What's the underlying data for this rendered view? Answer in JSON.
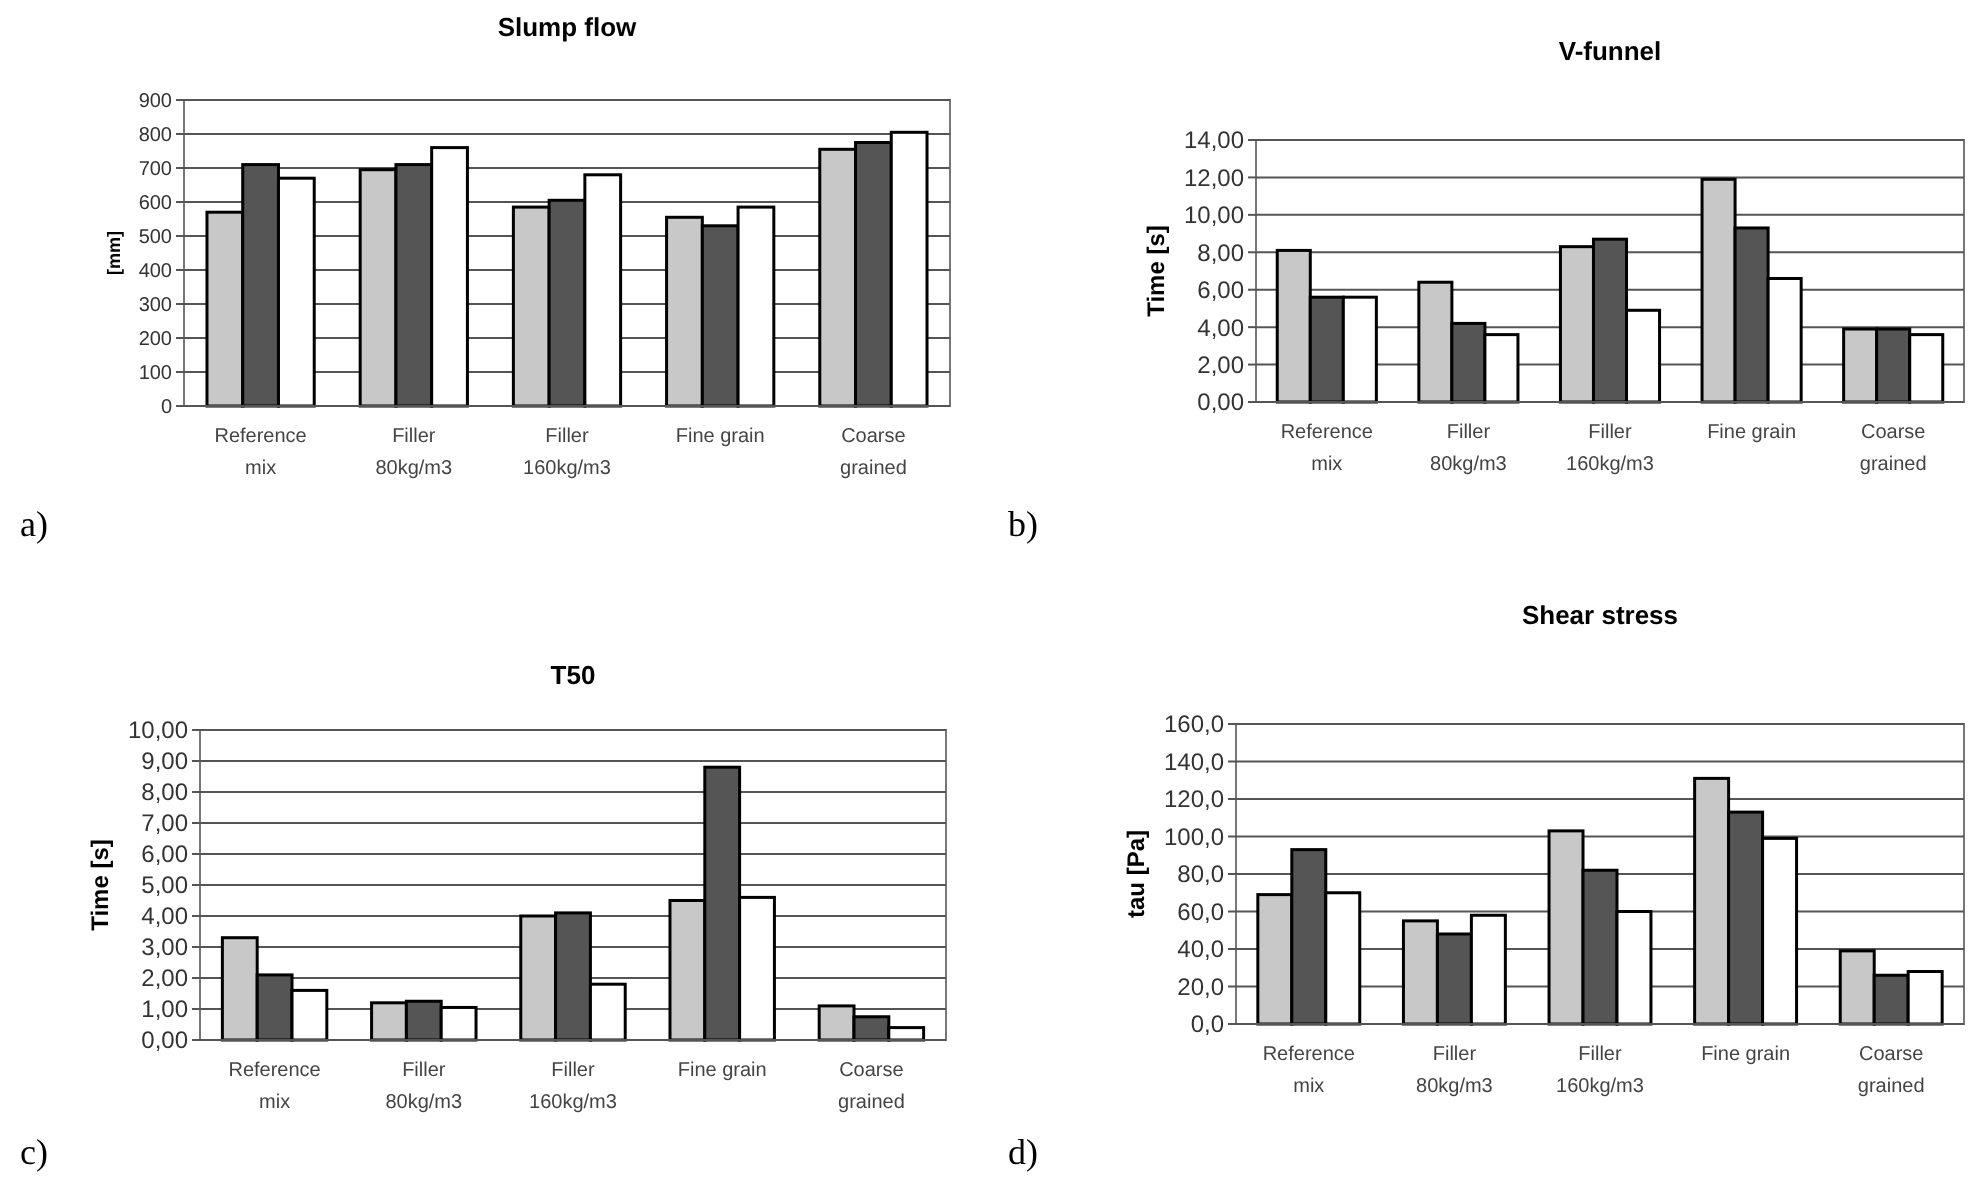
{
  "chart_data": [
    {
      "type": "bar",
      "title": "Slump flow",
      "ylabel": "[mm]",
      "annotations": [
        "a)"
      ],
      "categories": [
        "Reference mix",
        "Filler 80kg/m3",
        "Filler 160kg/m3",
        "Fine grain",
        "Coarse grained"
      ],
      "series": [
        {
          "color": "#c8c8c8",
          "values": [
            570,
            695,
            585,
            555,
            755
          ]
        },
        {
          "color": "#555555",
          "values": [
            710,
            710,
            605,
            530,
            775
          ]
        },
        {
          "color": "#ffffff",
          "values": [
            670,
            760,
            680,
            585,
            805
          ]
        }
      ],
      "ylim": [
        0,
        900
      ],
      "yticks": [
        0,
        100,
        200,
        300,
        400,
        500,
        600,
        700,
        800,
        900
      ],
      "grid": "y"
    },
    {
      "type": "bar",
      "title": "V-funnel",
      "ylabel": "Time [s]",
      "annotations": [
        "b)"
      ],
      "categories": [
        "Reference mix",
        "Filler 80kg/m3",
        "Filler 160kg/m3",
        "Fine grain",
        "Coarse grained"
      ],
      "series": [
        {
          "color": "#c8c8c8",
          "values": [
            8.1,
            6.4,
            8.3,
            11.9,
            3.9
          ]
        },
        {
          "color": "#555555",
          "values": [
            5.6,
            4.2,
            8.7,
            9.3,
            3.9
          ]
        },
        {
          "color": "#ffffff",
          "values": [
            5.6,
            3.6,
            4.9,
            6.6,
            3.6
          ]
        }
      ],
      "ylim": [
        0,
        14
      ],
      "yticks": [
        {
          "value": 0,
          "label": "0,00"
        },
        {
          "value": 2,
          "label": "2,00"
        },
        {
          "value": 4,
          "label": "4,00"
        },
        {
          "value": 6,
          "label": "6,00"
        },
        {
          "value": 8,
          "label": "8,00"
        },
        {
          "value": 10,
          "label": "10,00"
        },
        {
          "value": 12,
          "label": "12,00"
        },
        {
          "value": 14,
          "label": "14,00"
        }
      ],
      "grid": "y"
    },
    {
      "type": "bar",
      "title": "T50",
      "ylabel": "Time [s]",
      "annotations": [
        "c)"
      ],
      "categories": [
        "Reference mix",
        "Filler 80kg/m3",
        "Filler 160kg/m3",
        "Fine grain",
        "Coarse grained"
      ],
      "series": [
        {
          "color": "#c8c8c8",
          "values": [
            3.3,
            1.2,
            4.0,
            4.5,
            1.1
          ]
        },
        {
          "color": "#555555",
          "values": [
            2.1,
            1.25,
            4.1,
            8.8,
            0.75
          ]
        },
        {
          "color": "#ffffff",
          "values": [
            1.6,
            1.05,
            1.8,
            4.6,
            0.4
          ]
        }
      ],
      "ylim": [
        0,
        10
      ],
      "yticks": [
        {
          "value": 0,
          "label": "0,00"
        },
        {
          "value": 1,
          "label": "1,00"
        },
        {
          "value": 2,
          "label": "2,00"
        },
        {
          "value": 3,
          "label": "3,00"
        },
        {
          "value": 4,
          "label": "4,00"
        },
        {
          "value": 5,
          "label": "5,00"
        },
        {
          "value": 6,
          "label": "6,00"
        },
        {
          "value": 7,
          "label": "7,00"
        },
        {
          "value": 8,
          "label": "8,00"
        },
        {
          "value": 9,
          "label": "9,00"
        },
        {
          "value": 10,
          "label": "10,00"
        }
      ],
      "grid": "y"
    },
    {
      "type": "bar",
      "title": "Shear stress",
      "ylabel": "tau [Pa]",
      "annotations": [
        "d)"
      ],
      "categories": [
        "Reference mix",
        "Filler 80kg/m3",
        "Filler 160kg/m3",
        "Fine grain",
        "Coarse grained"
      ],
      "series": [
        {
          "color": "#c8c8c8",
          "values": [
            69,
            55,
            103,
            131,
            39
          ]
        },
        {
          "color": "#555555",
          "values": [
            93,
            48,
            82,
            113,
            26
          ]
        },
        {
          "color": "#ffffff",
          "values": [
            70,
            58,
            60,
            99,
            28
          ]
        }
      ],
      "ylim": [
        0,
        160
      ],
      "yticks": [
        {
          "value": 0,
          "label": "0,0"
        },
        {
          "value": 20,
          "label": "20,0"
        },
        {
          "value": 40,
          "label": "40,0"
        },
        {
          "value": 60,
          "label": "60,0"
        },
        {
          "value": 80,
          "label": "80,0"
        },
        {
          "value": 100,
          "label": "100,0"
        },
        {
          "value": 120,
          "label": "120,0"
        },
        {
          "value": 140,
          "label": "140,0"
        },
        {
          "value": 160,
          "label": "160,0"
        }
      ],
      "grid": "y"
    }
  ]
}
